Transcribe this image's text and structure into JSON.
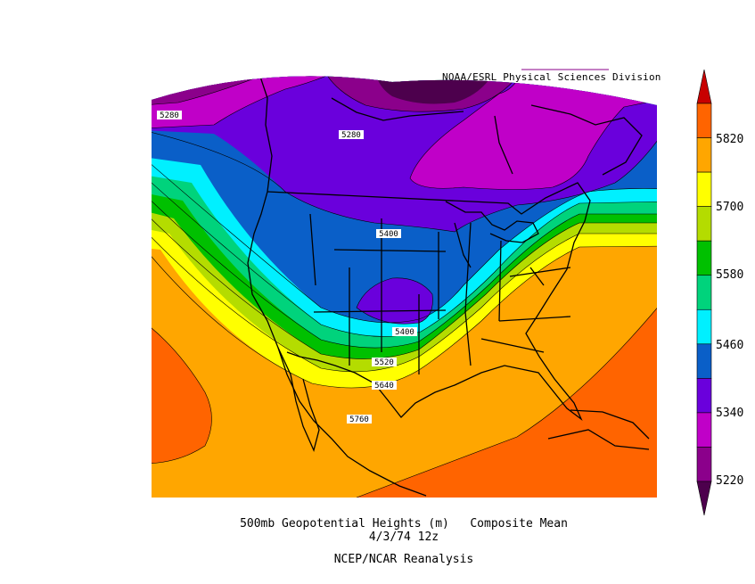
{
  "credit": "NOAA/ESRL Physical Sciences Division",
  "caption": {
    "line1": "500mb Geopotential Heights (m)   Composite Mean",
    "line2": "4/3/74 12z",
    "line3": "NCEP/NCAR Reanalysis"
  },
  "contour_labels": [
    "5280",
    "5280",
    "5400",
    "5400",
    "5520",
    "5640",
    "5760"
  ],
  "colorbar": {
    "tick_labels": [
      "5820",
      "5700",
      "5580",
      "5460",
      "5340",
      "5220"
    ],
    "colors": [
      "#4d004d",
      "#8b008b",
      "#c000c8",
      "#6a00dc",
      "#0a5fc8",
      "#00f0ff",
      "#00d37c",
      "#00c000",
      "#b4dc00",
      "#ffff00",
      "#ffa600",
      "#ff6400",
      "#c80000"
    ]
  }
}
